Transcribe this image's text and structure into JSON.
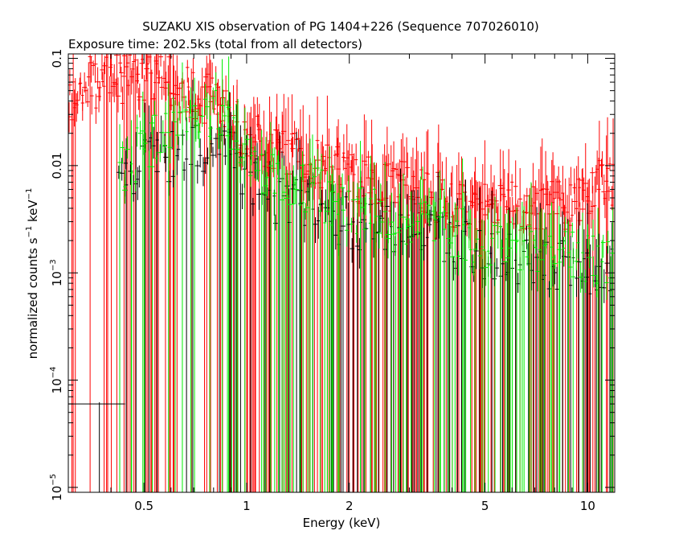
{
  "chart_data": {
    "type": "scatter",
    "title": "SUZAKU XIS observation of PG 1404+226 (Sequence 707026010)",
    "subtitle": "Exposure time: 202.5ks (total from all detectors)",
    "xlabel": "Energy (keV)",
    "ylabel_main": "normalized counts s",
    "ylabel_sup1": "−1",
    "ylabel_mid": " keV",
    "ylabel_sup2": "−1",
    "x_scale": "log",
    "y_scale": "log",
    "xlim": [
      0.3,
      12
    ],
    "ylim": [
      9e-06,
      0.11
    ],
    "grid": false,
    "x_ticks": [
      {
        "value": 0.5,
        "label": "0.5"
      },
      {
        "value": 1,
        "label": "1"
      },
      {
        "value": 2,
        "label": "2"
      },
      {
        "value": 5,
        "label": "5"
      },
      {
        "value": 10,
        "label": "10"
      }
    ],
    "y_ticks": [
      {
        "value": 1e-05,
        "base": "10",
        "exp": "−5",
        "label": ""
      },
      {
        "value": 0.0001,
        "base": "10",
        "exp": "−4",
        "label": ""
      },
      {
        "value": 0.001,
        "base": "10",
        "exp": "−3",
        "label": ""
      },
      {
        "value": 0.01,
        "base": "",
        "exp": "",
        "label": "0.01"
      },
      {
        "value": 0.1,
        "base": "",
        "exp": "",
        "label": "0.1"
      }
    ],
    "series": [
      {
        "color": "#ff0000",
        "emin": 0.3,
        "emax": 11.9,
        "count": 420,
        "ylow": 3e-05,
        "anchors": [
          [
            0.3,
            0.035
          ],
          [
            0.35,
            0.06
          ],
          [
            0.5,
            0.07
          ],
          [
            0.6,
            0.06
          ],
          [
            0.8,
            0.04
          ],
          [
            1.0,
            0.02
          ],
          [
            1.5,
            0.012
          ],
          [
            2.0,
            0.008
          ],
          [
            3.0,
            0.006
          ],
          [
            5.0,
            0.004
          ],
          [
            7.0,
            0.004
          ],
          [
            8.5,
            0.004
          ],
          [
            10.0,
            0.006
          ],
          [
            12.0,
            0.007
          ]
        ]
      },
      {
        "color": "#000000",
        "emin": 0.42,
        "emax": 11.9,
        "count": 190,
        "ylow": 2e-05,
        "anchors": [
          [
            0.42,
            0.005
          ],
          [
            0.5,
            0.01
          ],
          [
            0.7,
            0.015
          ],
          [
            0.9,
            0.012
          ],
          [
            1.2,
            0.005
          ],
          [
            2.0,
            0.003
          ],
          [
            3.0,
            0.0025
          ],
          [
            5.0,
            0.0015
          ],
          [
            8.0,
            0.0012
          ],
          [
            12.0,
            0.001
          ]
        ]
      },
      {
        "color": "#00ee00",
        "emin": 0.42,
        "emax": 11.9,
        "count": 220,
        "ylow": 2e-05,
        "anchors": [
          [
            0.42,
            0.008
          ],
          [
            0.5,
            0.015
          ],
          [
            0.7,
            0.025
          ],
          [
            0.85,
            0.03
          ],
          [
            1.0,
            0.012
          ],
          [
            1.5,
            0.006
          ],
          [
            2.0,
            0.004
          ],
          [
            3.0,
            0.003
          ],
          [
            5.0,
            0.002
          ],
          [
            8.0,
            0.0015
          ],
          [
            12.0,
            0.0012
          ]
        ]
      }
    ],
    "special_points": [
      {
        "color": "#000000",
        "x": 0.37,
        "xlo": 0.3,
        "xhi": 0.44,
        "y": 6e-05
      }
    ]
  }
}
